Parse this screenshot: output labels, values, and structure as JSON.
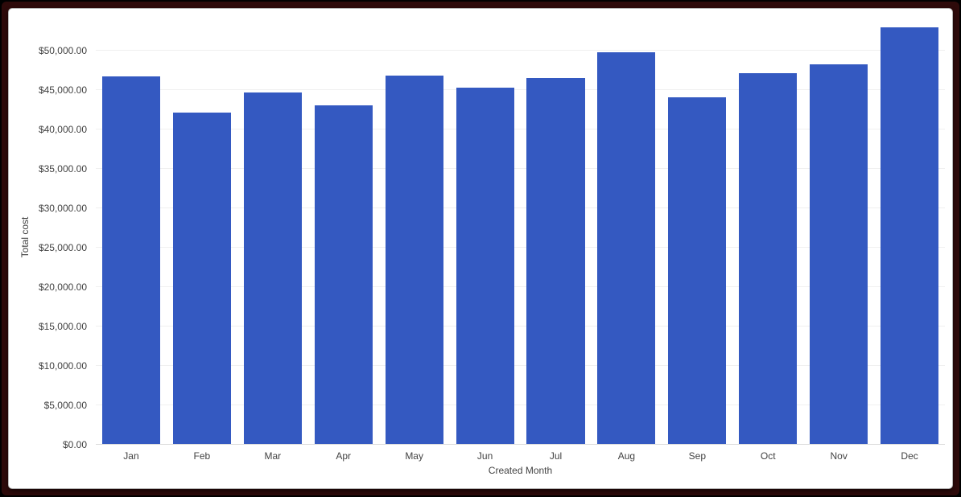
{
  "colors": {
    "bar": "#3459c1",
    "grid": "#f0f0f0",
    "baseline": "#dadada",
    "text": "#424242",
    "frame_border": "#2e0a0a",
    "outer_edge": "#000000",
    "card_background": "#ffffff"
  },
  "chart_data": {
    "type": "bar",
    "title": "",
    "xlabel": "Created Month",
    "ylabel": "Total cost",
    "categories": [
      "Jan",
      "Feb",
      "Mar",
      "Apr",
      "May",
      "Jun",
      "Jul",
      "Aug",
      "Sep",
      "Oct",
      "Nov",
      "Dec"
    ],
    "values": [
      46700,
      42200,
      44750,
      43050,
      46900,
      45300,
      46550,
      49800,
      44050,
      47150,
      48250,
      53000
    ],
    "series_name": "Total cost",
    "ylim": [
      0,
      54300
    ],
    "yticks": [
      0,
      5000,
      10000,
      15000,
      20000,
      25000,
      30000,
      35000,
      40000,
      45000,
      50000
    ],
    "ytick_labels": [
      "$0.00",
      "$5,000.00",
      "$10,000.00",
      "$15,000.00",
      "$20,000.00",
      "$25,000.00",
      "$30,000.00",
      "$35,000.00",
      "$40,000.00",
      "$45,000.00",
      "$50,000.00"
    ],
    "grid": true,
    "legend_position": "none",
    "bar_color": "#3459c1"
  }
}
